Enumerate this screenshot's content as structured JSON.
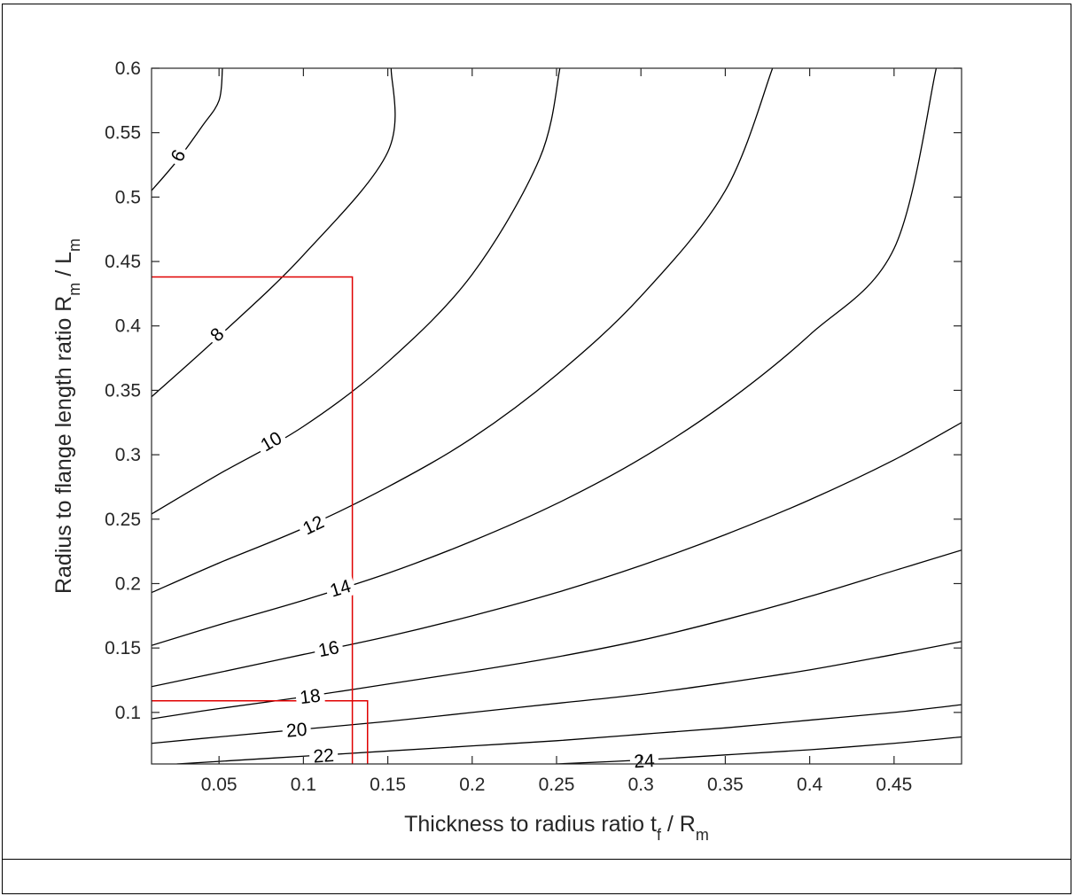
{
  "chart_data": {
    "type": "contour",
    "xlabel": {
      "main": "Thickness to radius ratio t",
      "sub1": "f",
      "mid": " / R",
      "sub2": "m"
    },
    "ylabel": {
      "main": "Radius to flange length ratio R",
      "sub1": "m",
      "mid": " / L",
      "sub2": "m"
    },
    "xlim": [
      0.01,
      0.49
    ],
    "ylim": [
      0.06,
      0.6
    ],
    "xticks": [
      "0.05",
      "0.1",
      "0.15",
      "0.2",
      "0.25",
      "0.3",
      "0.35",
      "0.4",
      "0.45"
    ],
    "xtick_values": [
      0.05,
      0.1,
      0.15,
      0.2,
      0.25,
      0.3,
      0.35,
      0.4,
      0.45
    ],
    "yticks": [
      "0.1",
      "0.15",
      "0.2",
      "0.25",
      "0.3",
      "0.35",
      "0.4",
      "0.45",
      "0.5",
      "0.55",
      "0.6"
    ],
    "ytick_values": [
      0.1,
      0.15,
      0.2,
      0.25,
      0.3,
      0.35,
      0.4,
      0.45,
      0.5,
      0.55,
      0.6
    ],
    "contour_color": "#000000",
    "highlight_color": "#e00000",
    "contours": [
      {
        "level": "6",
        "points": [
          [
            0.01,
            0.505
          ],
          [
            0.025,
            0.528
          ],
          [
            0.04,
            0.555
          ],
          [
            0.05,
            0.575
          ],
          [
            0.052,
            0.6
          ]
        ]
      },
      {
        "level": "8",
        "points": [
          [
            0.01,
            0.345
          ],
          [
            0.05,
            0.392
          ],
          [
            0.1,
            0.455
          ],
          [
            0.15,
            0.535
          ],
          [
            0.152,
            0.6
          ]
        ]
      },
      {
        "level": "10",
        "points": [
          [
            0.01,
            0.254
          ],
          [
            0.05,
            0.285
          ],
          [
            0.1,
            0.322
          ],
          [
            0.15,
            0.372
          ],
          [
            0.2,
            0.44
          ],
          [
            0.24,
            0.53
          ],
          [
            0.252,
            0.6
          ]
        ]
      },
      {
        "level": "12",
        "points": [
          [
            0.01,
            0.193
          ],
          [
            0.05,
            0.216
          ],
          [
            0.1,
            0.243
          ],
          [
            0.15,
            0.275
          ],
          [
            0.2,
            0.313
          ],
          [
            0.25,
            0.362
          ],
          [
            0.3,
            0.423
          ],
          [
            0.35,
            0.505
          ],
          [
            0.378,
            0.6
          ]
        ]
      },
      {
        "level": "14",
        "points": [
          [
            0.01,
            0.152
          ],
          [
            0.05,
            0.168
          ],
          [
            0.1,
            0.187
          ],
          [
            0.15,
            0.208
          ],
          [
            0.2,
            0.233
          ],
          [
            0.25,
            0.262
          ],
          [
            0.3,
            0.297
          ],
          [
            0.35,
            0.34
          ],
          [
            0.4,
            0.393
          ],
          [
            0.45,
            0.46
          ],
          [
            0.475,
            0.6
          ]
        ]
      },
      {
        "level": "16",
        "points": [
          [
            0.01,
            0.12
          ],
          [
            0.05,
            0.131
          ],
          [
            0.1,
            0.145
          ],
          [
            0.15,
            0.159
          ],
          [
            0.2,
            0.175
          ],
          [
            0.25,
            0.193
          ],
          [
            0.3,
            0.214
          ],
          [
            0.35,
            0.238
          ],
          [
            0.4,
            0.265
          ],
          [
            0.45,
            0.296
          ],
          [
            0.49,
            0.325
          ]
        ]
      },
      {
        "level": "18",
        "points": [
          [
            0.01,
            0.095
          ],
          [
            0.05,
            0.103
          ],
          [
            0.1,
            0.112
          ],
          [
            0.15,
            0.122
          ],
          [
            0.2,
            0.132
          ],
          [
            0.25,
            0.143
          ],
          [
            0.3,
            0.156
          ],
          [
            0.35,
            0.172
          ],
          [
            0.4,
            0.19
          ],
          [
            0.45,
            0.21
          ],
          [
            0.49,
            0.226
          ]
        ]
      },
      {
        "level": "20",
        "points": [
          [
            0.01,
            0.076
          ],
          [
            0.05,
            0.081
          ],
          [
            0.1,
            0.087
          ],
          [
            0.15,
            0.093
          ],
          [
            0.2,
            0.1
          ],
          [
            0.25,
            0.107
          ],
          [
            0.3,
            0.114
          ],
          [
            0.35,
            0.123
          ],
          [
            0.4,
            0.133
          ],
          [
            0.45,
            0.145
          ],
          [
            0.49,
            0.155
          ]
        ]
      },
      {
        "level": "22",
        "points": [
          [
            0.025,
            0.06
          ],
          [
            0.05,
            0.062
          ],
          [
            0.1,
            0.066
          ],
          [
            0.15,
            0.07
          ],
          [
            0.2,
            0.074
          ],
          [
            0.25,
            0.078
          ],
          [
            0.3,
            0.083
          ],
          [
            0.35,
            0.088
          ],
          [
            0.4,
            0.094
          ],
          [
            0.45,
            0.1
          ],
          [
            0.49,
            0.106
          ]
        ]
      },
      {
        "level": "24",
        "points": [
          [
            0.25,
            0.06
          ],
          [
            0.3,
            0.063
          ],
          [
            0.35,
            0.067
          ],
          [
            0.4,
            0.071
          ],
          [
            0.45,
            0.076
          ],
          [
            0.49,
            0.081
          ]
        ]
      }
    ],
    "contour_labels": [
      {
        "text": "6",
        "x": 0.026,
        "y": 0.532,
        "angle": -63
      },
      {
        "text": "8",
        "x": 0.049,
        "y": 0.393,
        "angle": -45
      },
      {
        "text": "10",
        "x": 0.081,
        "y": 0.31,
        "angle": -30
      },
      {
        "text": "12",
        "x": 0.106,
        "y": 0.245,
        "angle": -26
      },
      {
        "text": "14",
        "x": 0.122,
        "y": 0.196,
        "angle": -17
      },
      {
        "text": "16",
        "x": 0.115,
        "y": 0.149,
        "angle": -11
      },
      {
        "text": "18",
        "x": 0.104,
        "y": 0.112,
        "angle": -7
      },
      {
        "text": "20",
        "x": 0.096,
        "y": 0.086,
        "angle": -5
      },
      {
        "text": "22",
        "x": 0.112,
        "y": 0.066,
        "angle": -4
      },
      {
        "text": "24",
        "x": 0.302,
        "y": 0.062,
        "angle": -3
      }
    ],
    "highlight_boxes": [
      {
        "x": [
          0.01,
          0.129
        ],
        "y": [
          0.06,
          0.438
        ]
      },
      {
        "x": [
          0.01,
          0.138
        ],
        "y": [
          0.06,
          0.109
        ]
      }
    ]
  }
}
